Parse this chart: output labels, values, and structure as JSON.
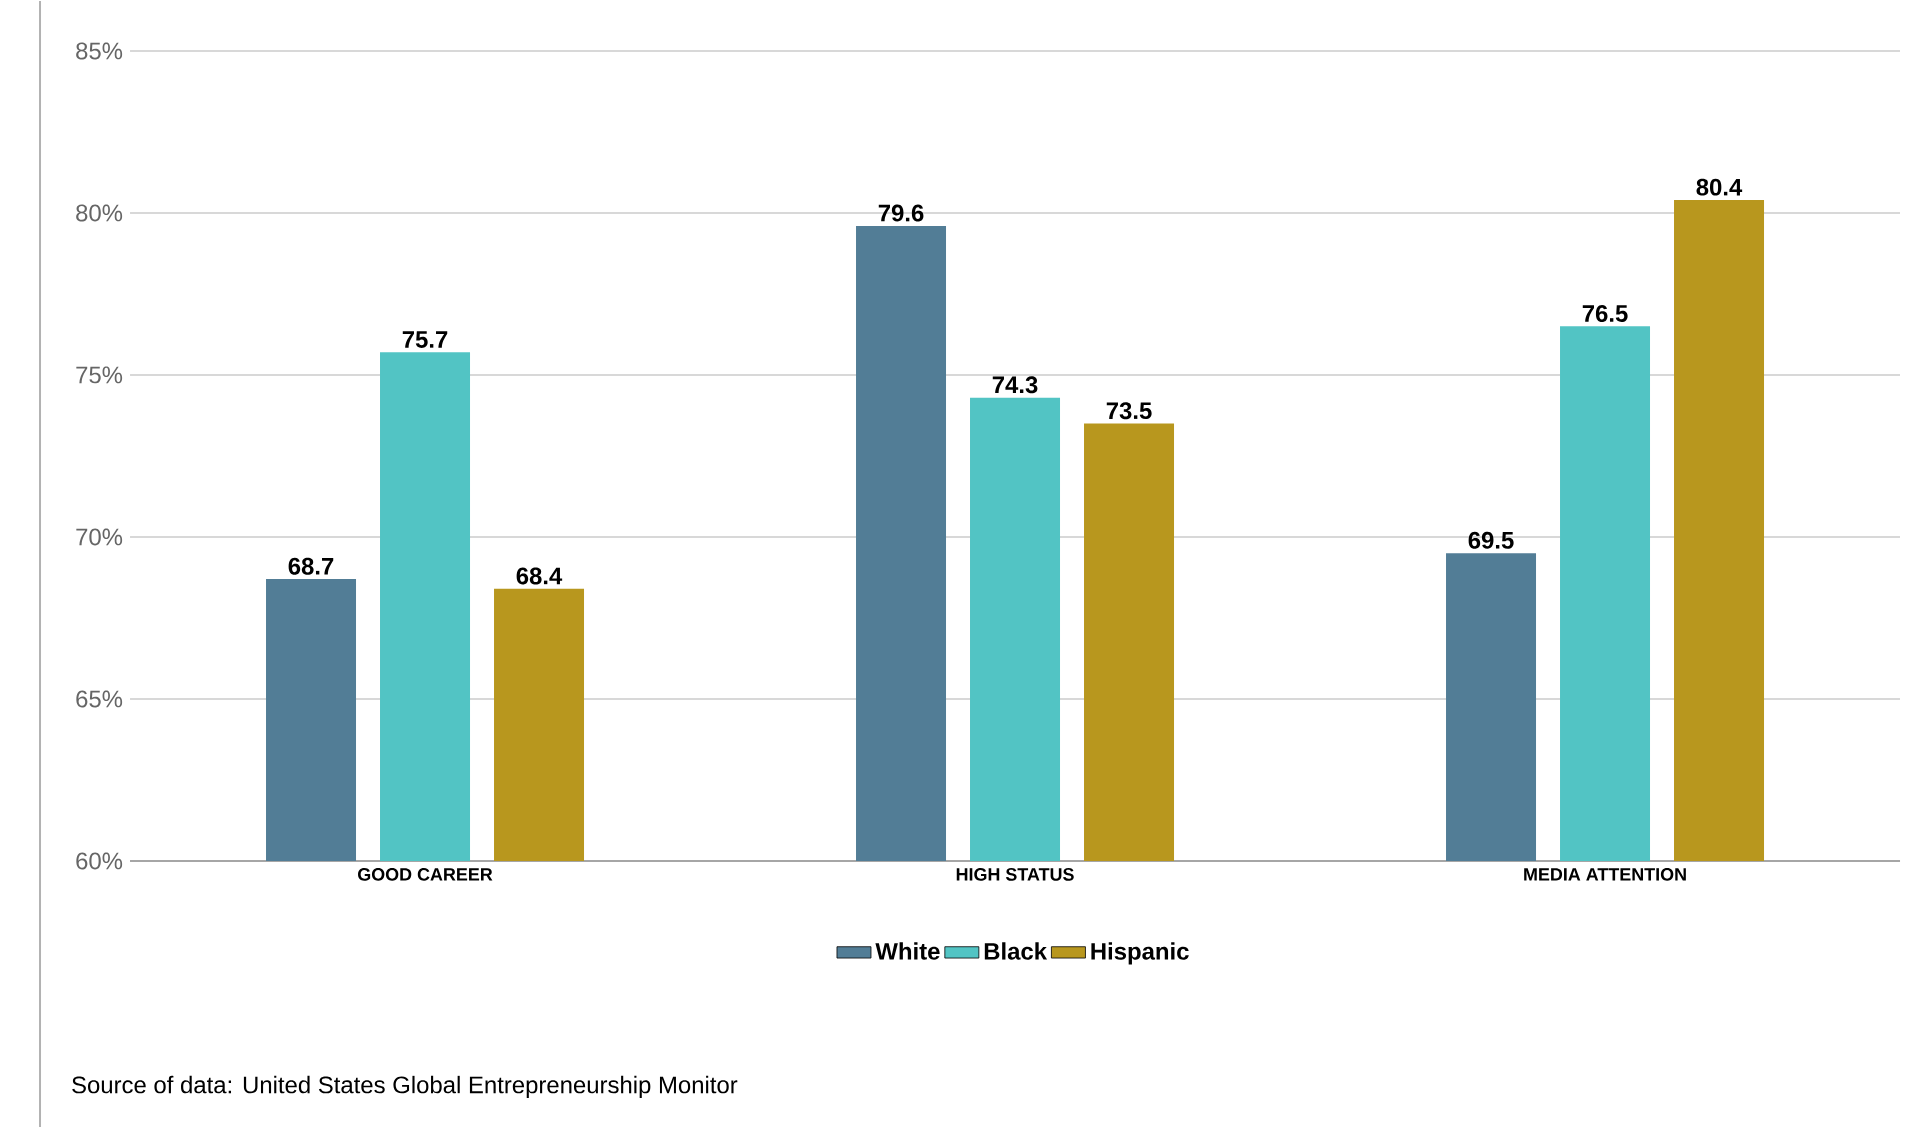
{
  "chart_data": {
    "type": "bar",
    "categories": [
      "GOOD CAREER",
      "HIGH STATUS",
      "MEDIA ATTENTION"
    ],
    "series": [
      {
        "name": "White",
        "color": "#527d96",
        "values": [
          68.7,
          79.6,
          69.5
        ]
      },
      {
        "name": "Black",
        "color": "#52c4c4",
        "values": [
          75.7,
          74.3,
          76.5
        ]
      },
      {
        "name": "Hispanic",
        "color": "#b8971e",
        "values": [
          68.4,
          73.5,
          80.4
        ]
      }
    ],
    "ylim": [
      60,
      85
    ],
    "yticks": [
      {
        "value": 60,
        "label": "60%"
      },
      {
        "value": 65,
        "label": "65%"
      },
      {
        "value": 70,
        "label": "70%"
      },
      {
        "value": 75,
        "label": "75%"
      },
      {
        "value": 80,
        "label": "80%"
      },
      {
        "value": 85,
        "label": "85%"
      }
    ],
    "grid": "y",
    "legend": "bottom",
    "data_labels": true,
    "annotations": [
      "Source of data: United States Global Entrepreneurship Monitor"
    ]
  }
}
